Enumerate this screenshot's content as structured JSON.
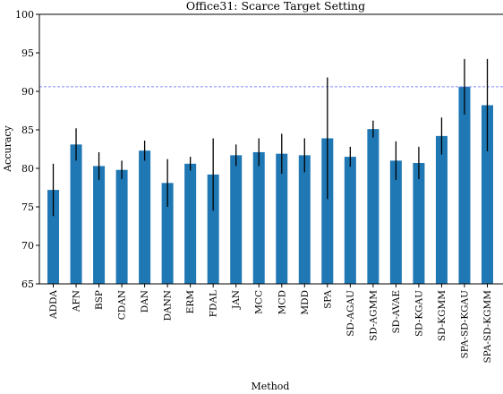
{
  "chart_data": {
    "type": "bar",
    "title": "Office31: Scarce Target Setting",
    "xlabel": "Method",
    "ylabel": "Accuracy",
    "ylim": [
      65,
      100
    ],
    "yticks": [
      65,
      70,
      75,
      80,
      85,
      90,
      95,
      100
    ],
    "grid": false,
    "bar_color": "#1f77b4",
    "errorbar_color": "#000000",
    "reference_line": {
      "value": 90.6,
      "color": "#8888ff",
      "style": "dashed"
    },
    "categories": [
      "ADDA",
      "AFN",
      "BSP",
      "CDAN",
      "DAN",
      "DANN",
      "ERM",
      "FDAL",
      "JAN",
      "MCC",
      "MCD",
      "MDD",
      "SPA",
      "SD-AGAU",
      "SD-AGMM",
      "SD-AVAE",
      "SD-KGAU",
      "SD-KGMM",
      "SPA-SD-KGAU",
      "SPA-SD-KGMM"
    ],
    "values": [
      77.2,
      83.1,
      80.3,
      79.8,
      82.3,
      78.1,
      80.6,
      79.2,
      81.7,
      82.1,
      81.9,
      81.7,
      83.9,
      81.5,
      85.1,
      81.0,
      80.7,
      84.2,
      90.6,
      88.2
    ],
    "errors": [
      3.4,
      2.1,
      1.8,
      1.2,
      1.3,
      3.1,
      0.9,
      4.7,
      1.4,
      1.8,
      2.6,
      2.2,
      7.9,
      1.3,
      1.1,
      2.5,
      2.1,
      2.4,
      3.6,
      6.0
    ]
  }
}
